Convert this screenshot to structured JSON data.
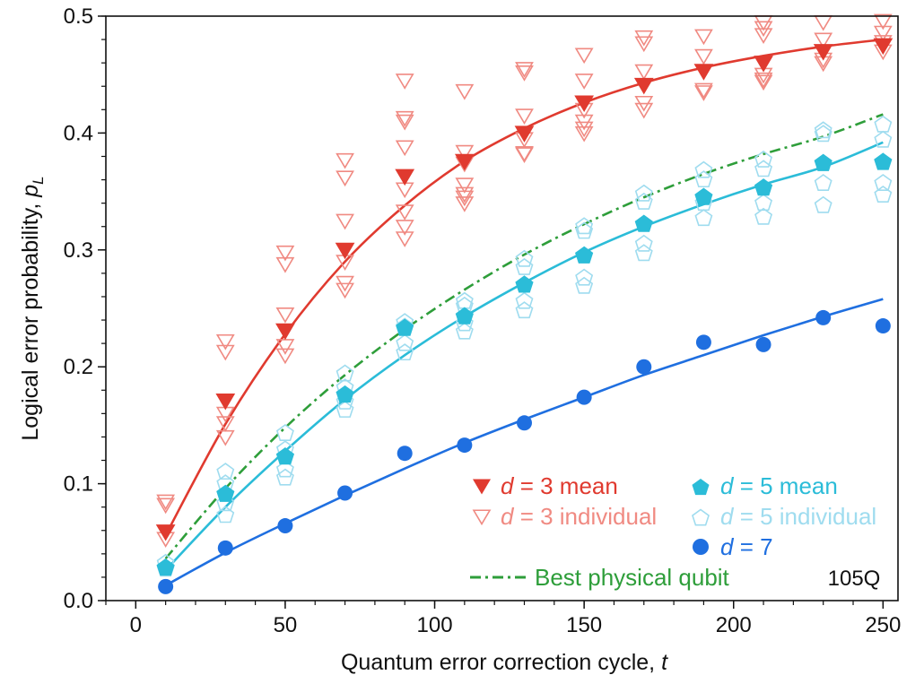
{
  "chart_data": {
    "type": "scatter",
    "xlabel": "Quantum error correction cycle, ",
    "xlabel_var": "t",
    "ylabel": "Logical error probability, ",
    "ylabel_var": "p",
    "ylabel_sub": "L",
    "xlim": [
      -10,
      255
    ],
    "ylim": [
      0,
      0.5
    ],
    "x_ticks": [
      0,
      50,
      100,
      150,
      200,
      250
    ],
    "x_tick_labels": [
      "0",
      "50",
      "100",
      "150",
      "200",
      "250"
    ],
    "y_ticks": [
      0.0,
      0.1,
      0.2,
      0.3,
      0.4,
      0.5
    ],
    "y_tick_labels": [
      "0.0",
      "0.1",
      "0.2",
      "0.3",
      "0.4",
      "0.5"
    ],
    "x_minor_step": 10,
    "y_minor_step": 0.02,
    "annotation": "105Q",
    "legend_position": "lower-right",
    "colors": {
      "d3": "#e03a2f",
      "d3_individual": "#f08a82",
      "d5": "#2bbcd8",
      "d5_individual": "#9fdcef",
      "d7": "#1f6fe0",
      "physical": "#2e9e3a",
      "axis": "#111111"
    },
    "series": [
      {
        "name": "d = 3 mean",
        "legend_var": "d",
        "legend_rest": " = 3 mean",
        "marker": "triangle-down-filled",
        "color_key": "d3",
        "x": [
          10,
          30,
          50,
          70,
          90,
          110,
          130,
          150,
          170,
          190,
          210,
          230,
          250
        ],
        "y": [
          0.059,
          0.171,
          0.231,
          0.3,
          0.363,
          0.376,
          0.4,
          0.426,
          0.441,
          0.453,
          0.46,
          0.47,
          0.475
        ]
      },
      {
        "name": "d = 3 individual",
        "legend_var": "d",
        "legend_rest": " = 3 individual",
        "marker": "triangle-down-open",
        "color_key": "d3_individual",
        "points": [
          [
            10,
            0.085
          ],
          [
            10,
            0.082
          ],
          [
            10,
            0.053
          ],
          [
            30,
            0.222
          ],
          [
            30,
            0.213
          ],
          [
            30,
            0.16
          ],
          [
            30,
            0.152
          ],
          [
            30,
            0.14
          ],
          [
            50,
            0.298
          ],
          [
            50,
            0.288
          ],
          [
            50,
            0.245
          ],
          [
            50,
            0.218
          ],
          [
            50,
            0.21
          ],
          [
            70,
            0.377
          ],
          [
            70,
            0.362
          ],
          [
            70,
            0.325
          ],
          [
            70,
            0.29
          ],
          [
            70,
            0.272
          ],
          [
            70,
            0.266
          ],
          [
            90,
            0.445
          ],
          [
            90,
            0.413
          ],
          [
            90,
            0.41
          ],
          [
            90,
            0.388
          ],
          [
            90,
            0.352
          ],
          [
            90,
            0.333
          ],
          [
            90,
            0.32
          ],
          [
            90,
            0.31
          ],
          [
            110,
            0.436
          ],
          [
            110,
            0.384
          ],
          [
            110,
            0.374
          ],
          [
            110,
            0.356
          ],
          [
            110,
            0.348
          ],
          [
            110,
            0.345
          ],
          [
            110,
            0.34
          ],
          [
            130,
            0.455
          ],
          [
            130,
            0.452
          ],
          [
            130,
            0.415
          ],
          [
            130,
            0.395
          ],
          [
            130,
            0.383
          ],
          [
            130,
            0.382
          ],
          [
            150,
            0.467
          ],
          [
            150,
            0.445
          ],
          [
            150,
            0.42
          ],
          [
            150,
            0.41
          ],
          [
            150,
            0.404
          ],
          [
            150,
            0.4
          ],
          [
            170,
            0.482
          ],
          [
            170,
            0.477
          ],
          [
            170,
            0.453
          ],
          [
            170,
            0.426
          ],
          [
            170,
            0.42
          ],
          [
            190,
            0.483
          ],
          [
            190,
            0.466
          ],
          [
            190,
            0.437
          ],
          [
            190,
            0.435
          ],
          [
            210,
            0.495
          ],
          [
            210,
            0.49
          ],
          [
            210,
            0.484
          ],
          [
            210,
            0.45
          ],
          [
            210,
            0.446
          ],
          [
            210,
            0.444
          ],
          [
            230,
            0.495
          ],
          [
            230,
            0.48
          ],
          [
            230,
            0.463
          ],
          [
            230,
            0.46
          ],
          [
            250,
            0.496
          ],
          [
            250,
            0.486
          ],
          [
            250,
            0.478
          ],
          [
            250,
            0.47
          ]
        ]
      },
      {
        "name": "d = 5 mean",
        "legend_var": "d",
        "legend_rest": " = 5 mean",
        "marker": "pentagon-filled",
        "color_key": "d5",
        "x": [
          10,
          30,
          50,
          70,
          90,
          110,
          130,
          150,
          170,
          190,
          210,
          230,
          250
        ],
        "y": [
          0.028,
          0.091,
          0.123,
          0.176,
          0.233,
          0.243,
          0.27,
          0.295,
          0.322,
          0.345,
          0.353,
          0.374,
          0.375
        ]
      },
      {
        "name": "d = 5 individual",
        "legend_var": "d",
        "legend_rest": " = 5 individual",
        "marker": "pentagon-open",
        "color_key": "d5_individual",
        "points": [
          [
            10,
            0.032
          ],
          [
            10,
            0.027
          ],
          [
            30,
            0.11
          ],
          [
            30,
            0.1
          ],
          [
            30,
            0.083
          ],
          [
            30,
            0.073
          ],
          [
            50,
            0.143
          ],
          [
            50,
            0.129
          ],
          [
            50,
            0.112
          ],
          [
            50,
            0.105
          ],
          [
            70,
            0.194
          ],
          [
            70,
            0.182
          ],
          [
            70,
            0.17
          ],
          [
            70,
            0.163
          ],
          [
            90,
            0.238
          ],
          [
            90,
            0.234
          ],
          [
            90,
            0.22
          ],
          [
            90,
            0.212
          ],
          [
            110,
            0.256
          ],
          [
            110,
            0.252
          ],
          [
            110,
            0.237
          ],
          [
            110,
            0.23
          ],
          [
            130,
            0.292
          ],
          [
            130,
            0.285
          ],
          [
            130,
            0.256
          ],
          [
            130,
            0.248
          ],
          [
            150,
            0.32
          ],
          [
            150,
            0.316
          ],
          [
            150,
            0.276
          ],
          [
            150,
            0.269
          ],
          [
            170,
            0.348
          ],
          [
            170,
            0.341
          ],
          [
            170,
            0.305
          ],
          [
            170,
            0.297
          ],
          [
            190,
            0.368
          ],
          [
            190,
            0.36
          ],
          [
            190,
            0.34
          ],
          [
            190,
            0.327
          ],
          [
            210,
            0.377
          ],
          [
            210,
            0.369
          ],
          [
            210,
            0.34
          ],
          [
            210,
            0.328
          ],
          [
            230,
            0.402
          ],
          [
            230,
            0.399
          ],
          [
            230,
            0.357
          ],
          [
            230,
            0.338
          ],
          [
            250,
            0.407
          ],
          [
            250,
            0.394
          ],
          [
            250,
            0.357
          ],
          [
            250,
            0.347
          ]
        ]
      },
      {
        "name": "d = 7",
        "legend_var": "d",
        "legend_rest": " = 7",
        "marker": "circle-filled",
        "color_key": "d7",
        "x": [
          10,
          30,
          50,
          70,
          90,
          110,
          130,
          150,
          170,
          190,
          210,
          230,
          250
        ],
        "y": [
          0.012,
          0.045,
          0.064,
          0.092,
          0.126,
          0.133,
          0.152,
          0.174,
          0.2,
          0.221,
          0.219,
          0.242,
          0.235
        ]
      },
      {
        "name": "Best physical qubit",
        "legend_var": "",
        "legend_rest": "Best physical qubit",
        "marker": "dash-dot-line",
        "color_key": "physical",
        "x": [
          10,
          30,
          50,
          70,
          90,
          110,
          130,
          150,
          170,
          190,
          210,
          230,
          250
        ],
        "y": [
          0.036,
          0.096,
          0.148,
          0.193,
          0.232,
          0.266,
          0.296,
          0.322,
          0.345,
          0.365,
          0.382,
          0.397,
          0.416
        ]
      }
    ],
    "fit_lines": [
      {
        "color_key": "d3",
        "x": [
          10,
          30,
          50,
          70,
          90,
          110,
          130,
          150,
          170,
          190,
          210,
          230,
          250
        ],
        "y": [
          0.056,
          0.151,
          0.228,
          0.29,
          0.338,
          0.376,
          0.404,
          0.426,
          0.443,
          0.456,
          0.466,
          0.474,
          0.48
        ]
      },
      {
        "color_key": "d5",
        "x": [
          10,
          30,
          50,
          70,
          90,
          110,
          130,
          150,
          170,
          190,
          210,
          230,
          250
        ],
        "y": [
          0.026,
          0.08,
          0.128,
          0.172,
          0.21,
          0.243,
          0.272,
          0.298,
          0.32,
          0.339,
          0.356,
          0.371,
          0.392
        ]
      },
      {
        "color_key": "d7",
        "x": [
          10,
          30,
          50,
          70,
          90,
          110,
          130,
          150,
          170,
          190,
          210,
          230,
          250
        ],
        "y": [
          0.013,
          0.041,
          0.066,
          0.09,
          0.113,
          0.135,
          0.155,
          0.174,
          0.193,
          0.21,
          0.227,
          0.243,
          0.258
        ]
      }
    ]
  }
}
